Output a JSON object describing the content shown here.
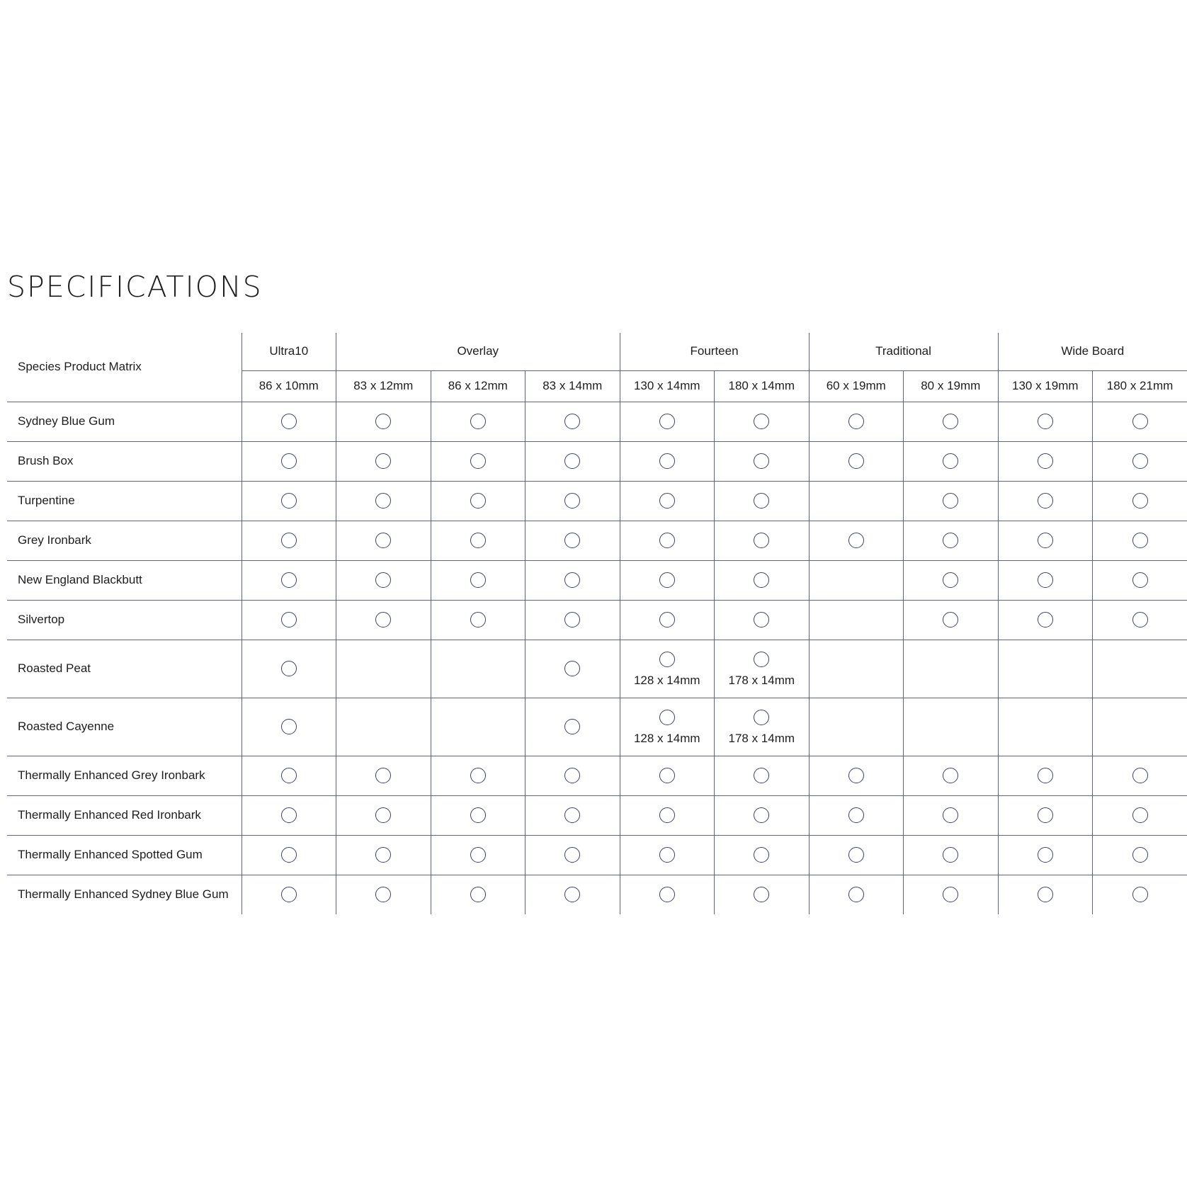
{
  "heading": "SPECIFICATIONS",
  "table": {
    "corner_label": "Species Product Matrix",
    "groups": [
      {
        "label": "Ultra10",
        "span": 1
      },
      {
        "label": "Overlay",
        "span": 3
      },
      {
        "label": "Fourteen",
        "span": 2
      },
      {
        "label": "Traditional",
        "span": 2
      },
      {
        "label": "Wide Board",
        "span": 2
      }
    ],
    "sizes": [
      "86 x 10mm",
      "83 x 12mm",
      "86 x 12mm",
      "83 x 14mm",
      "130 x 14mm",
      "180 x 14mm",
      "60 x 19mm",
      "80 x 19mm",
      "130 x 19mm",
      "180 x 21mm"
    ],
    "rows": [
      {
        "species": "Sydney Blue Gum",
        "cells": [
          1,
          1,
          1,
          1,
          1,
          1,
          1,
          1,
          1,
          1
        ]
      },
      {
        "species": "Brush Box",
        "cells": [
          1,
          1,
          1,
          1,
          1,
          1,
          1,
          1,
          1,
          1
        ]
      },
      {
        "species": "Turpentine",
        "cells": [
          1,
          1,
          1,
          1,
          1,
          1,
          0,
          1,
          1,
          1
        ]
      },
      {
        "species": "Grey Ironbark",
        "cells": [
          1,
          1,
          1,
          1,
          1,
          1,
          1,
          1,
          1,
          1
        ]
      },
      {
        "species": "New England Blackbutt",
        "cells": [
          1,
          1,
          1,
          1,
          1,
          1,
          0,
          1,
          1,
          1
        ]
      },
      {
        "species": "Silvertop",
        "cells": [
          1,
          1,
          1,
          1,
          1,
          1,
          0,
          1,
          1,
          1
        ]
      },
      {
        "species": "Roasted Peat",
        "cells": [
          1,
          0,
          0,
          1,
          "128 x 14mm",
          "178 x 14mm",
          0,
          0,
          0,
          0
        ]
      },
      {
        "species": "Roasted Cayenne",
        "cells": [
          1,
          0,
          0,
          1,
          "128 x 14mm",
          "178 x 14mm",
          0,
          0,
          0,
          0
        ]
      },
      {
        "species": "Thermally Enhanced Grey Ironbark",
        "cells": [
          1,
          1,
          1,
          1,
          1,
          1,
          1,
          1,
          1,
          1
        ]
      },
      {
        "species": "Thermally Enhanced Red Ironbark",
        "cells": [
          1,
          1,
          1,
          1,
          1,
          1,
          1,
          1,
          1,
          1
        ]
      },
      {
        "species": "Thermally Enhanced Spotted Gum",
        "cells": [
          1,
          1,
          1,
          1,
          1,
          1,
          1,
          1,
          1,
          1
        ]
      },
      {
        "species": "Thermally Enhanced Sydney Blue Gum",
        "cells": [
          1,
          1,
          1,
          1,
          1,
          1,
          1,
          1,
          1,
          1
        ]
      }
    ]
  },
  "colors": {
    "rule": "#5e6480",
    "circle": "#3d4466",
    "text": "#1e1e1e"
  },
  "icons": {
    "available": "circle-outline"
  }
}
